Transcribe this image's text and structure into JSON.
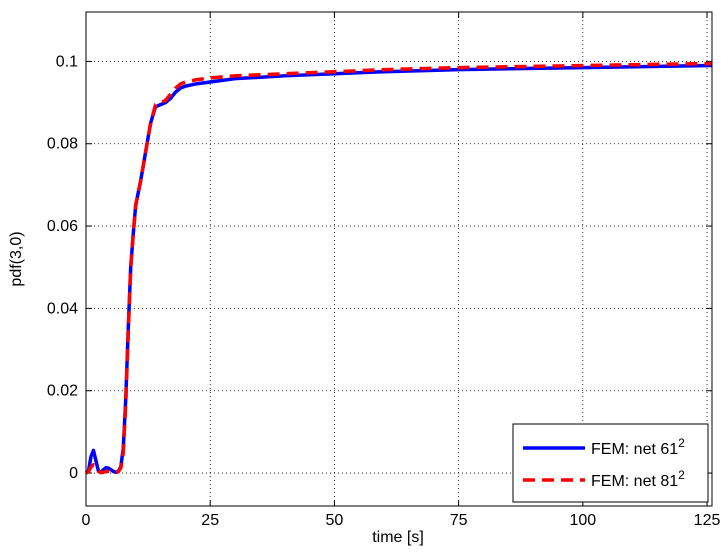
{
  "chart_data": {
    "type": "line",
    "title": "",
    "xlabel": "time [s]",
    "ylabel": "pdf(3,0)",
    "xlim": [
      0,
      126
    ],
    "ylim": [
      -0.008,
      0.112
    ],
    "xticks": [
      0,
      25,
      50,
      75,
      100,
      125
    ],
    "yticks": [
      0,
      0.02,
      0.04,
      0.06,
      0.08,
      0.1
    ],
    "xtick_labels": [
      "0",
      "25",
      "50",
      "75",
      "100",
      "125"
    ],
    "ytick_labels": [
      "0",
      "0.02",
      "0.04",
      "0.06",
      "0.08",
      "0.1"
    ],
    "grid": true,
    "legend_position": "bottom-right",
    "series": [
      {
        "name": "FEM: net 61",
        "name_superscript": "2",
        "color": "#0000ff",
        "style": "solid",
        "x": [
          0,
          0.5,
          1.0,
          1.5,
          2.0,
          2.5,
          3.0,
          3.5,
          4.0,
          4.5,
          5.0,
          5.5,
          6.0,
          6.5,
          7.0,
          7.5,
          8.0,
          8.5,
          9.0,
          9.5,
          10,
          11,
          12,
          13,
          14,
          15,
          16,
          17,
          18,
          19,
          20,
          22,
          25,
          30,
          40,
          50,
          60,
          75,
          100,
          126
        ],
        "y": [
          0,
          0.0005,
          0.004,
          0.0055,
          0.003,
          0.0005,
          0.0002,
          0.0008,
          0.0013,
          0.0012,
          0.0008,
          0.0004,
          0.0002,
          0.0004,
          0.0015,
          0.006,
          0.018,
          0.035,
          0.05,
          0.058,
          0.065,
          0.071,
          0.078,
          0.085,
          0.089,
          0.0895,
          0.09,
          0.091,
          0.0925,
          0.0935,
          0.094,
          0.0945,
          0.095,
          0.0958,
          0.0965,
          0.097,
          0.0975,
          0.098,
          0.0985,
          0.099
        ]
      },
      {
        "name": "FEM: net 81",
        "name_superscript": "2",
        "color": "#ff0000",
        "style": "dashed",
        "x": [
          0,
          0.5,
          1.0,
          1.5,
          2.0,
          2.5,
          3.0,
          3.5,
          4.0,
          4.5,
          5.0,
          5.5,
          6.0,
          6.5,
          7.0,
          7.5,
          8.0,
          8.5,
          9.0,
          9.5,
          10,
          11,
          12,
          13,
          14,
          15,
          16,
          17,
          18,
          19,
          20,
          22,
          25,
          30,
          40,
          50,
          60,
          75,
          100,
          126
        ],
        "y": [
          0,
          0.0003,
          0.0015,
          0.002,
          0.0012,
          0.0004,
          0.0001,
          0.0002,
          0.0004,
          0.0004,
          0.0003,
          0.0002,
          0.0001,
          0.0003,
          0.0012,
          0.005,
          0.017,
          0.034,
          0.05,
          0.058,
          0.065,
          0.071,
          0.078,
          0.085,
          0.0895,
          0.09,
          0.0905,
          0.092,
          0.0935,
          0.0945,
          0.095,
          0.0955,
          0.096,
          0.0965,
          0.097,
          0.0975,
          0.098,
          0.0985,
          0.099,
          0.0995
        ]
      }
    ]
  }
}
